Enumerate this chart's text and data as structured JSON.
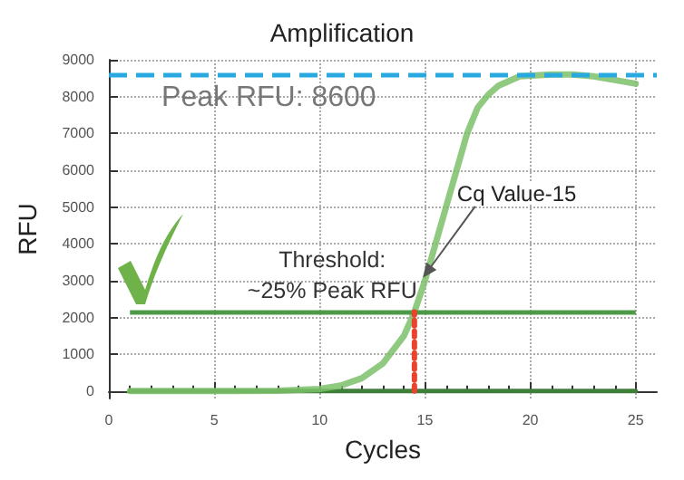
{
  "chart_data": {
    "type": "line",
    "title": "Amplification",
    "xlabel": "Cycles",
    "ylabel": "RFU",
    "xlim": [
      0,
      26
    ],
    "xticks": [
      0,
      5,
      10,
      15,
      20,
      25
    ],
    "ylim": [
      -200,
      9000
    ],
    "yticks": [
      0,
      1000,
      2000,
      3000,
      4000,
      5000,
      6000,
      7000,
      8000,
      9000
    ],
    "grid": true,
    "marker": "none",
    "line_style": "solid",
    "series": [
      {
        "color": "#3f7f3a",
        "x": [
          1,
          5,
          10,
          15,
          20,
          25
        ],
        "values": [
          0,
          0,
          0,
          0,
          0,
          0
        ]
      },
      {
        "color": "#7dc06a",
        "x": [
          1,
          5,
          8,
          10,
          11,
          12,
          13,
          14,
          14.5,
          15,
          16,
          17,
          17.5,
          18,
          18.5,
          19.5,
          21,
          22,
          23,
          24,
          25
        ],
        "values": [
          0,
          0,
          10,
          60,
          150,
          350,
          750,
          1500,
          2150,
          3000,
          5000,
          7000,
          7700,
          8050,
          8300,
          8550,
          8600,
          8600,
          8550,
          8450,
          8350
        ]
      },
      {
        "color": "#e8432c",
        "line_style": "dotted",
        "x": [
          14.5,
          14.5
        ],
        "values": [
          0,
          2150
        ]
      }
    ],
    "ref_lines": [
      {
        "axis": "y",
        "value": 2150,
        "label": "Threshold: ~25% Peak RFU",
        "color": "#4c9a48",
        "line_style": "solid"
      },
      {
        "axis": "y",
        "value": 8600,
        "label": "Peak RFU: 8600",
        "color": "#29a9e0",
        "line_style": "dashed"
      }
    ],
    "annotations": [
      {
        "text": "Cq Value-15",
        "x": 14.8,
        "y": 3000
      }
    ]
  }
}
